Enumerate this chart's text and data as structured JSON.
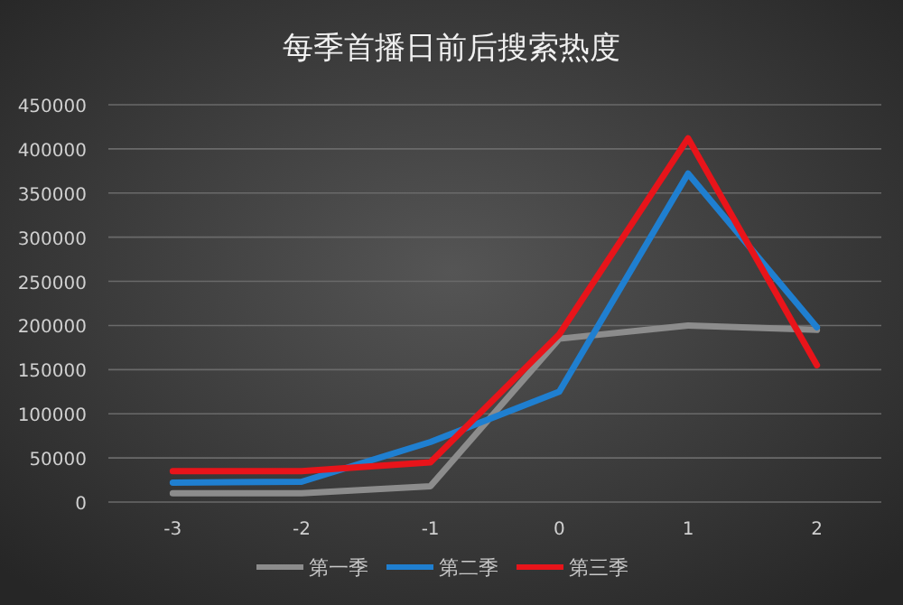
{
  "chart_data": {
    "type": "line",
    "title": "每季首播日前后搜索热度",
    "categories": [
      "-3",
      "-2",
      "-1",
      "0",
      "1",
      "2"
    ],
    "series": [
      {
        "name": "第一季",
        "color": "#8c8c8c",
        "values": [
          10000,
          10000,
          18000,
          185000,
          200000,
          195000
        ]
      },
      {
        "name": "第二季",
        "color": "#1f7fd0",
        "values": [
          22000,
          23000,
          68000,
          125000,
          372000,
          198000
        ]
      },
      {
        "name": "第三季",
        "color": "#e8141a",
        "values": [
          35000,
          35000,
          45000,
          190000,
          412000,
          155000
        ]
      }
    ],
    "ylim": [
      0,
      450000
    ],
    "yticks": [
      0,
      50000,
      100000,
      150000,
      200000,
      250000,
      300000,
      350000,
      400000,
      450000
    ],
    "grid": "y",
    "legend": "bottom"
  }
}
